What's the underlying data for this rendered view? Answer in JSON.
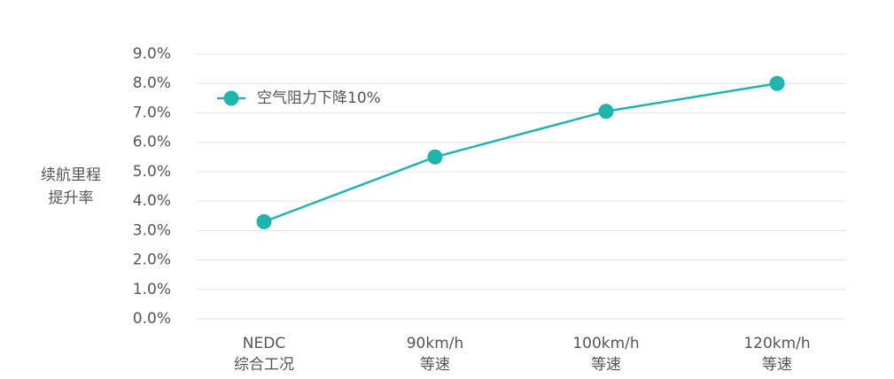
{
  "chart_data": {
    "type": "line",
    "y_label": [
      "续航里程",
      "提升率"
    ],
    "categories": [
      [
        "NEDC",
        "综合工况"
      ],
      [
        "90km/h",
        "等速"
      ],
      [
        "100km/h",
        "等速"
      ],
      [
        "120km/h",
        "等速"
      ]
    ],
    "series": [
      {
        "name": "空气阻力下降10%",
        "color": "#1fb5ad",
        "values": [
          3.3,
          5.5,
          7.05,
          8.0
        ]
      }
    ],
    "ylim": [
      0,
      9
    ],
    "yticks": [
      {
        "value": 0,
        "label": "0.0%"
      },
      {
        "value": 1,
        "label": "1.0%"
      },
      {
        "value": 2,
        "label": "2.0%"
      },
      {
        "value": 3,
        "label": "3.0%"
      },
      {
        "value": 4,
        "label": "4.0%"
      },
      {
        "value": 5,
        "label": "5.0%"
      },
      {
        "value": 6,
        "label": "6.0%"
      },
      {
        "value": 7,
        "label": "7.0%"
      },
      {
        "value": 8,
        "label": "8.0%"
      },
      {
        "value": 9,
        "label": "9.0%"
      }
    ],
    "grid": true,
    "legend": "top-left"
  }
}
